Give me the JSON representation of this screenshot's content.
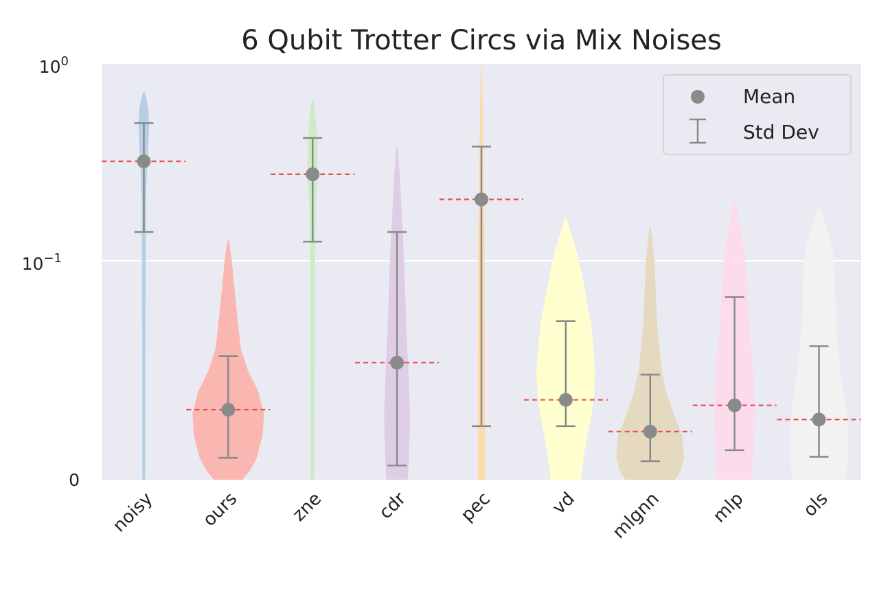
{
  "chart_data": {
    "type": "violin",
    "title": "6 Qubit Trotter Circs via Mix Noises",
    "xlabel": "",
    "ylabel": "",
    "yscale": "symlog",
    "ylim": [
      0,
      1
    ],
    "y_ticks": [
      {
        "value": 0,
        "label": "0",
        "sup": ""
      },
      {
        "value": 0.1,
        "label": "10",
        "sup": "−1"
      },
      {
        "value": 1,
        "label": "10",
        "sup": "0"
      }
    ],
    "grid": true,
    "legend": {
      "position": "top-right",
      "entries": [
        {
          "label": "Mean",
          "marker": "dot"
        },
        {
          "label": "Std Dev",
          "marker": "errorbar"
        }
      ]
    },
    "colors": {
      "background": "#eaeaf2",
      "mean_marker": "#8a8a8a",
      "mean_line": "#f04a4a",
      "errorbar": "#8a8a8a"
    },
    "categories": [
      "noisy",
      "ours",
      "zne",
      "cdr",
      "pec",
      "vd",
      "mlgnn",
      "mlp",
      "ols"
    ],
    "series": [
      {
        "category": "noisy",
        "mean": 0.32,
        "std_low": 0.14,
        "std_high": 0.5,
        "max": 0.72,
        "color": "#b3cde3",
        "profile": [
          [
            0,
            0.04
          ],
          [
            0.1,
            0.05
          ],
          [
            0.2,
            0.06
          ],
          [
            0.3,
            0.09
          ],
          [
            0.4,
            0.13
          ],
          [
            0.5,
            0.15
          ],
          [
            0.6,
            0.12
          ],
          [
            0.68,
            0.06
          ],
          [
            0.72,
            0.02
          ]
        ]
      },
      {
        "category": "ours",
        "mean": 0.032,
        "std_low": 0.01,
        "std_high": 0.0565,
        "max": 0.127,
        "color": "#fbb4ae",
        "profile": [
          [
            0,
            0.4
          ],
          [
            0.004,
            0.6
          ],
          [
            0.01,
            0.8
          ],
          [
            0.02,
            0.96
          ],
          [
            0.03,
            1.0
          ],
          [
            0.04,
            0.85
          ],
          [
            0.05,
            0.55
          ],
          [
            0.06,
            0.35
          ],
          [
            0.08,
            0.22
          ],
          [
            0.1,
            0.1
          ],
          [
            0.127,
            0.02
          ]
        ]
      },
      {
        "category": "zne",
        "mean": 0.275,
        "std_low": 0.125,
        "std_high": 0.42,
        "max": 0.66,
        "color": "#ccebc5",
        "profile": [
          [
            0,
            0.05
          ],
          [
            0.1,
            0.07
          ],
          [
            0.2,
            0.1
          ],
          [
            0.3,
            0.14
          ],
          [
            0.4,
            0.13
          ],
          [
            0.5,
            0.1
          ],
          [
            0.6,
            0.05
          ],
          [
            0.66,
            0.02
          ]
        ]
      },
      {
        "category": "cdr",
        "mean": 0.0535,
        "std_low": 0.0065,
        "std_high": 0.14,
        "max": 0.38,
        "color": "#decbe4",
        "profile": [
          [
            0,
            0.3
          ],
          [
            0.01,
            0.33
          ],
          [
            0.02,
            0.35
          ],
          [
            0.03,
            0.36
          ],
          [
            0.05,
            0.32
          ],
          [
            0.07,
            0.26
          ],
          [
            0.1,
            0.2
          ],
          [
            0.15,
            0.15
          ],
          [
            0.25,
            0.09
          ],
          [
            0.38,
            0.02
          ]
        ]
      },
      {
        "category": "pec",
        "mean": 0.205,
        "std_low": 0.0245,
        "std_high": 0.38,
        "max": 0.98,
        "color": "#fed9a6",
        "profile": [
          [
            0,
            0.1
          ],
          [
            0.02,
            0.1
          ],
          [
            0.05,
            0.1
          ],
          [
            0.1,
            0.09
          ],
          [
            0.2,
            0.07
          ],
          [
            0.4,
            0.05
          ],
          [
            0.7,
            0.03
          ],
          [
            0.98,
            0.01
          ]
        ]
      },
      {
        "category": "vd",
        "mean": 0.0365,
        "std_low": 0.0245,
        "std_high": 0.0725,
        "max": 0.165,
        "color": "#ffffcc",
        "profile": [
          [
            0,
            0.42
          ],
          [
            0.01,
            0.5
          ],
          [
            0.02,
            0.6
          ],
          [
            0.03,
            0.72
          ],
          [
            0.04,
            0.8
          ],
          [
            0.05,
            0.82
          ],
          [
            0.07,
            0.72
          ],
          [
            0.09,
            0.5
          ],
          [
            0.11,
            0.32
          ],
          [
            0.14,
            0.14
          ],
          [
            0.165,
            0.03
          ]
        ]
      },
      {
        "category": "mlgnn",
        "mean": 0.022,
        "std_low": 0.0085,
        "std_high": 0.048,
        "max": 0.148,
        "color": "#e5d8bd",
        "profile": [
          [
            0,
            0.7
          ],
          [
            0.004,
            0.85
          ],
          [
            0.01,
            0.95
          ],
          [
            0.02,
            0.9
          ],
          [
            0.03,
            0.66
          ],
          [
            0.04,
            0.45
          ],
          [
            0.05,
            0.32
          ],
          [
            0.07,
            0.2
          ],
          [
            0.1,
            0.12
          ],
          [
            0.148,
            0.02
          ]
        ]
      },
      {
        "category": "mlp",
        "mean": 0.034,
        "std_low": 0.0135,
        "std_high": 0.0835,
        "max": 0.2,
        "color": "#fddaec",
        "profile": [
          [
            0,
            0.5
          ],
          [
            0.01,
            0.52
          ],
          [
            0.02,
            0.55
          ],
          [
            0.03,
            0.58
          ],
          [
            0.05,
            0.52
          ],
          [
            0.07,
            0.42
          ],
          [
            0.1,
            0.3
          ],
          [
            0.14,
            0.18
          ],
          [
            0.2,
            0.03
          ]
        ]
      },
      {
        "category": "ols",
        "mean": 0.0275,
        "std_low": 0.0105,
        "std_high": 0.061,
        "max": 0.19,
        "color": "#f2f2f2",
        "profile": [
          [
            0,
            0.75
          ],
          [
            0.01,
            0.8
          ],
          [
            0.02,
            0.82
          ],
          [
            0.03,
            0.78
          ],
          [
            0.05,
            0.6
          ],
          [
            0.07,
            0.48
          ],
          [
            0.09,
            0.45
          ],
          [
            0.11,
            0.4
          ],
          [
            0.14,
            0.25
          ],
          [
            0.19,
            0.02
          ]
        ]
      }
    ]
  }
}
